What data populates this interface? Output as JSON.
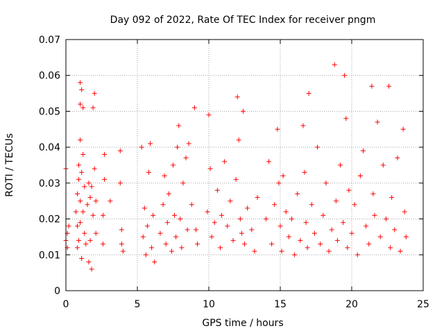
{
  "chart_data": {
    "type": "scatter",
    "title": "Day 092 of 2022, Rate Of TEC Index for receiver pngm",
    "xlabel": "GPS time / hours",
    "ylabel": "ROTI / TECUs",
    "xlim": [
      0,
      25
    ],
    "ylim": [
      0,
      0.07
    ],
    "x_ticks": [
      0,
      5,
      10,
      15,
      20,
      25
    ],
    "x_tick_labels": [
      "0",
      "5",
      "10",
      "15",
      "20",
      "25"
    ],
    "y_ticks": [
      0,
      0.01,
      0.02,
      0.03,
      0.04,
      0.05,
      0.06,
      0.07
    ],
    "y_tick_labels": [
      "0",
      "0.01",
      "0.02",
      "0.03",
      "0.04",
      "0.05",
      "0.06",
      "0.07"
    ],
    "grid": true,
    "marker": "plus",
    "color": "#ff0000",
    "series": [
      {
        "values": [
          [
            0.0,
            0.034
          ],
          [
            0.0,
            0.014
          ],
          [
            0.1,
            0.016
          ],
          [
            0.1,
            0.012
          ],
          [
            0.2,
            0.018
          ],
          [
            0.7,
            0.022
          ],
          [
            0.8,
            0.027
          ],
          [
            0.8,
            0.018
          ],
          [
            0.8,
            0.012
          ],
          [
            0.9,
            0.035
          ],
          [
            0.9,
            0.031
          ],
          [
            0.9,
            0.014
          ],
          [
            1.0,
            0.058
          ],
          [
            1.0,
            0.052
          ],
          [
            1.0,
            0.042
          ],
          [
            1.0,
            0.025
          ],
          [
            1.0,
            0.019
          ],
          [
            1.1,
            0.056
          ],
          [
            1.1,
            0.033
          ],
          [
            1.1,
            0.009
          ],
          [
            1.2,
            0.051
          ],
          [
            1.2,
            0.038
          ],
          [
            1.2,
            0.022
          ],
          [
            1.3,
            0.029
          ],
          [
            1.3,
            0.016
          ],
          [
            1.4,
            0.013
          ],
          [
            1.5,
            0.024
          ],
          [
            1.6,
            0.008
          ],
          [
            1.6,
            0.03
          ],
          [
            1.7,
            0.026
          ],
          [
            1.7,
            0.014
          ],
          [
            1.8,
            0.006
          ],
          [
            1.8,
            0.029
          ],
          [
            1.9,
            0.051
          ],
          [
            1.9,
            0.021
          ],
          [
            2.0,
            0.055
          ],
          [
            2.0,
            0.034
          ],
          [
            2.1,
            0.016
          ],
          [
            2.1,
            0.025
          ],
          [
            2.6,
            0.021
          ],
          [
            2.6,
            0.013
          ],
          [
            2.7,
            0.038
          ],
          [
            2.7,
            0.031
          ],
          [
            3.1,
            0.025
          ],
          [
            3.8,
            0.039
          ],
          [
            3.8,
            0.03
          ],
          [
            3.9,
            0.017
          ],
          [
            3.9,
            0.013
          ],
          [
            4.0,
            0.011
          ],
          [
            5.3,
            0.04
          ],
          [
            5.4,
            0.015
          ],
          [
            5.5,
            0.023
          ],
          [
            5.6,
            0.01
          ],
          [
            5.7,
            0.018
          ],
          [
            5.8,
            0.033
          ],
          [
            5.9,
            0.041
          ],
          [
            6.0,
            0.012
          ],
          [
            6.1,
            0.021
          ],
          [
            6.2,
            0.008
          ],
          [
            6.6,
            0.016
          ],
          [
            6.8,
            0.024
          ],
          [
            6.9,
            0.032
          ],
          [
            7.0,
            0.013
          ],
          [
            7.1,
            0.019
          ],
          [
            7.2,
            0.027
          ],
          [
            7.4,
            0.011
          ],
          [
            7.5,
            0.035
          ],
          [
            7.6,
            0.021
          ],
          [
            7.7,
            0.015
          ],
          [
            7.8,
            0.04
          ],
          [
            7.9,
            0.046
          ],
          [
            8.0,
            0.02
          ],
          [
            8.1,
            0.012
          ],
          [
            8.2,
            0.03
          ],
          [
            8.4,
            0.037
          ],
          [
            8.5,
            0.017
          ],
          [
            8.6,
            0.041
          ],
          [
            8.8,
            0.024
          ],
          [
            9.0,
            0.051
          ],
          [
            9.1,
            0.017
          ],
          [
            9.2,
            0.013
          ],
          [
            9.9,
            0.022
          ],
          [
            10.0,
            0.049
          ],
          [
            10.1,
            0.034
          ],
          [
            10.2,
            0.015
          ],
          [
            10.4,
            0.019
          ],
          [
            10.6,
            0.028
          ],
          [
            10.8,
            0.012
          ],
          [
            10.9,
            0.021
          ],
          [
            11.1,
            0.036
          ],
          [
            11.3,
            0.018
          ],
          [
            11.5,
            0.025
          ],
          [
            11.7,
            0.014
          ],
          [
            11.9,
            0.031
          ],
          [
            12.0,
            0.054
          ],
          [
            12.1,
            0.042
          ],
          [
            12.2,
            0.02
          ],
          [
            12.3,
            0.016
          ],
          [
            12.4,
            0.05
          ],
          [
            12.5,
            0.013
          ],
          [
            12.7,
            0.023
          ],
          [
            13.0,
            0.017
          ],
          [
            13.2,
            0.011
          ],
          [
            13.4,
            0.026
          ],
          [
            14.0,
            0.02
          ],
          [
            14.2,
            0.036
          ],
          [
            14.4,
            0.013
          ],
          [
            14.6,
            0.024
          ],
          [
            14.8,
            0.045
          ],
          [
            14.9,
            0.03
          ],
          [
            15.0,
            0.018
          ],
          [
            15.1,
            0.011
          ],
          [
            15.2,
            0.032
          ],
          [
            15.4,
            0.022
          ],
          [
            15.6,
            0.015
          ],
          [
            15.8,
            0.02
          ],
          [
            16.0,
            0.01
          ],
          [
            16.2,
            0.027
          ],
          [
            16.4,
            0.014
          ],
          [
            16.6,
            0.046
          ],
          [
            16.7,
            0.033
          ],
          [
            16.8,
            0.019
          ],
          [
            16.9,
            0.012
          ],
          [
            17.0,
            0.055
          ],
          [
            17.2,
            0.024
          ],
          [
            17.4,
            0.016
          ],
          [
            17.6,
            0.04
          ],
          [
            17.8,
            0.013
          ],
          [
            18.0,
            0.021
          ],
          [
            18.2,
            0.03
          ],
          [
            18.4,
            0.011
          ],
          [
            18.6,
            0.017
          ],
          [
            18.8,
            0.063
          ],
          [
            18.9,
            0.025
          ],
          [
            19.0,
            0.014
          ],
          [
            19.2,
            0.035
          ],
          [
            19.4,
            0.019
          ],
          [
            19.5,
            0.06
          ],
          [
            19.6,
            0.048
          ],
          [
            19.7,
            0.012
          ],
          [
            19.8,
            0.028
          ],
          [
            20.0,
            0.016
          ],
          [
            20.2,
            0.024
          ],
          [
            20.4,
            0.01
          ],
          [
            20.6,
            0.032
          ],
          [
            20.8,
            0.039
          ],
          [
            21.0,
            0.018
          ],
          [
            21.2,
            0.013
          ],
          [
            21.4,
            0.057
          ],
          [
            21.5,
            0.027
          ],
          [
            21.6,
            0.021
          ],
          [
            21.8,
            0.047
          ],
          [
            22.0,
            0.015
          ],
          [
            22.2,
            0.035
          ],
          [
            22.4,
            0.02
          ],
          [
            22.6,
            0.057
          ],
          [
            22.7,
            0.012
          ],
          [
            22.8,
            0.026
          ],
          [
            23.0,
            0.017
          ],
          [
            23.2,
            0.037
          ],
          [
            23.4,
            0.011
          ],
          [
            23.6,
            0.045
          ],
          [
            23.7,
            0.022
          ],
          [
            23.8,
            0.015
          ]
        ]
      }
    ]
  }
}
